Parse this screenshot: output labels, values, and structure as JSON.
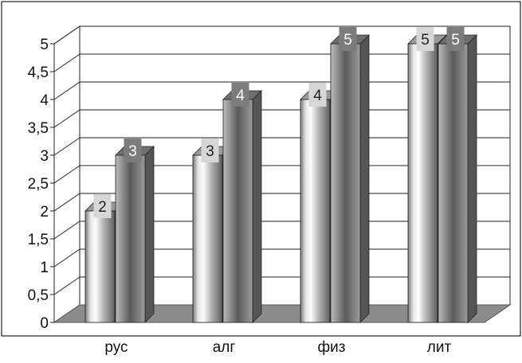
{
  "chart_data": {
    "type": "bar",
    "categories": [
      "рус",
      "алг",
      "физ",
      "лит"
    ],
    "series": [
      {
        "values": [
          2,
          3,
          4,
          5
        ]
      },
      {
        "values": [
          3,
          4,
          5,
          5
        ]
      }
    ],
    "ylim": [
      0,
      5
    ],
    "yticks": [
      "0",
      "0,5",
      "1",
      "1,5",
      "2",
      "2,5",
      "3",
      "3,5",
      "4",
      "4,5",
      "5"
    ],
    "grid": true,
    "legend": "none",
    "style": "3d-cylinder-shaded"
  }
}
